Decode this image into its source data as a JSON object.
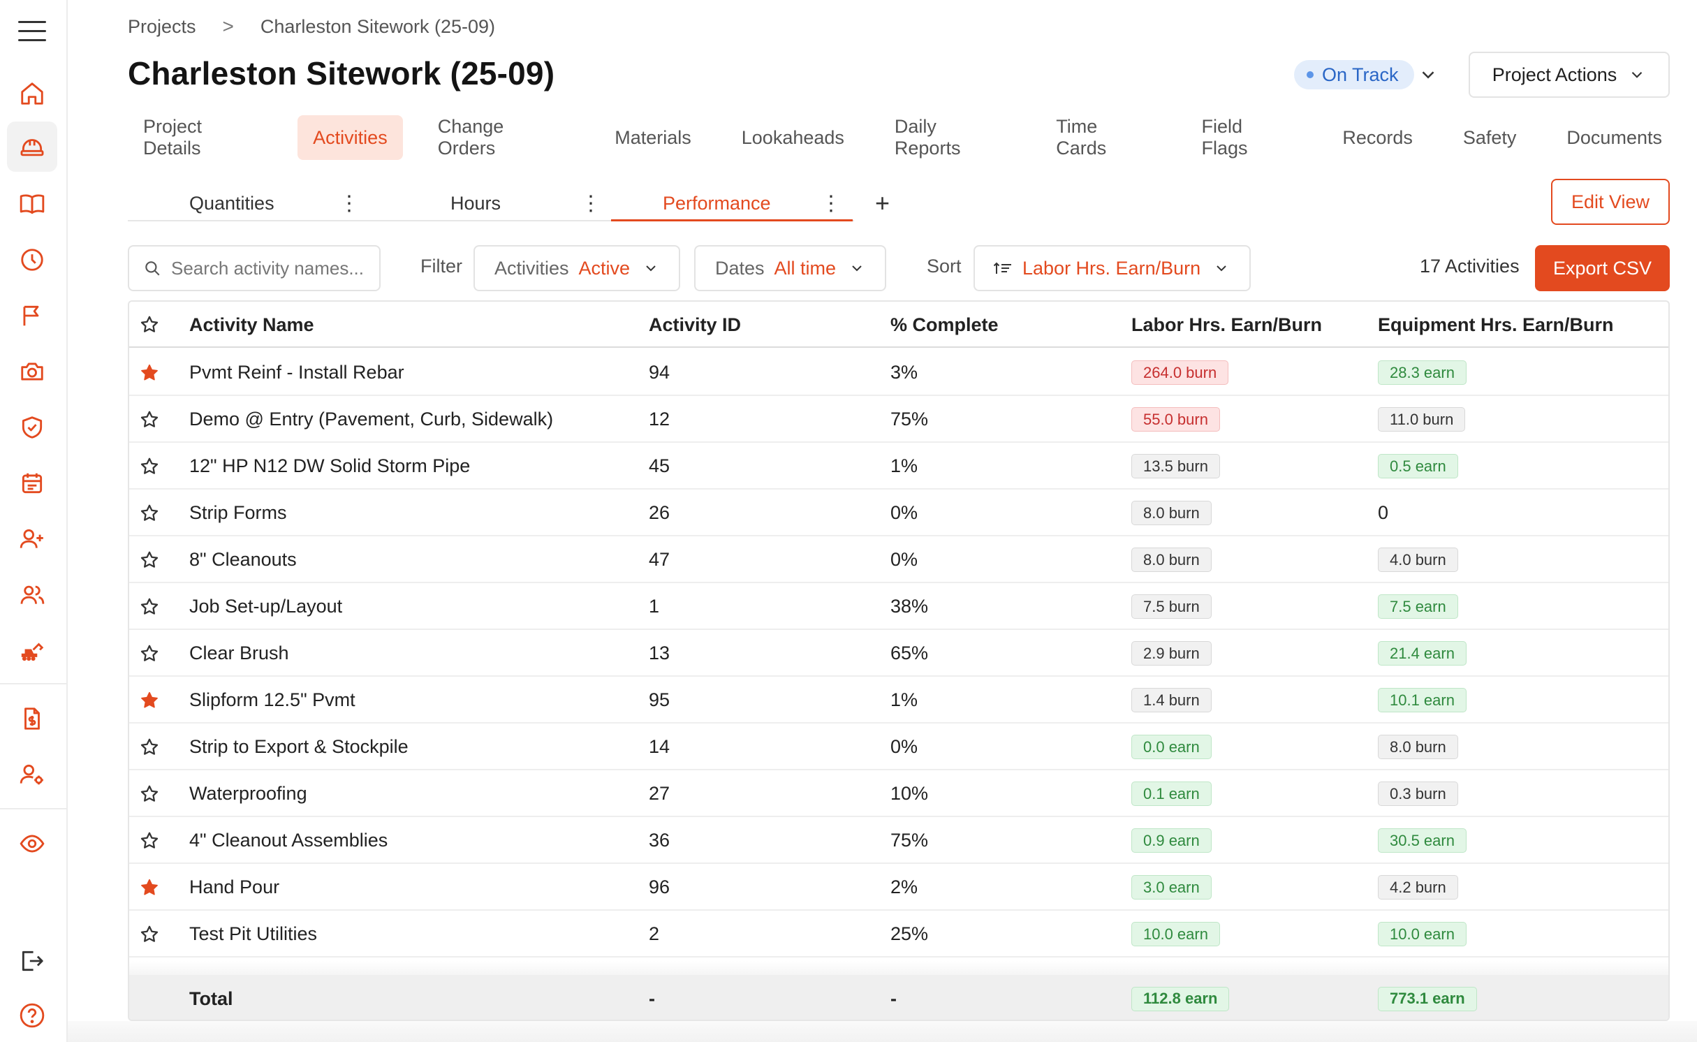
{
  "breadcrumb": {
    "parent": "Projects",
    "separator": ">",
    "current": "Charleston Sitework (25-09)"
  },
  "title": "Charleston Sitework (25-09)",
  "status": {
    "label": "On Track",
    "color": "#2a66c6"
  },
  "project_actions_label": "Project Actions",
  "tabs": [
    {
      "label": "Project Details",
      "active": false
    },
    {
      "label": "Activities",
      "active": true
    },
    {
      "label": "Change Orders",
      "active": false
    },
    {
      "label": "Materials",
      "active": false
    },
    {
      "label": "Lookaheads",
      "active": false
    },
    {
      "label": "Daily Reports",
      "active": false
    },
    {
      "label": "Time Cards",
      "active": false
    },
    {
      "label": "Field Flags",
      "active": false
    },
    {
      "label": "Records",
      "active": false
    },
    {
      "label": "Safety",
      "active": false
    },
    {
      "label": "Documents",
      "active": false
    }
  ],
  "views": [
    {
      "label": "Quantities",
      "active": false
    },
    {
      "label": "Hours",
      "active": false
    },
    {
      "label": "Performance",
      "active": true
    }
  ],
  "add_view_label": "+",
  "edit_view_label": "Edit View",
  "search": {
    "placeholder": "Search activity names...",
    "value": ""
  },
  "filter": {
    "label": "Filter",
    "activities": {
      "name": "Activities",
      "value": "Active"
    },
    "dates": {
      "name": "Dates",
      "value": "All time"
    }
  },
  "sort": {
    "label": "Sort",
    "value": "Labor Hrs. Earn/Burn"
  },
  "activity_count": "17 Activities",
  "export_label": "Export CSV",
  "accent_color": "#e34a1f",
  "sidebar_icons": [
    "menu-icon",
    "home-icon",
    "hardhat-icon",
    "book-icon",
    "clock-icon",
    "flag-icon",
    "camera-icon",
    "shield-icon",
    "calendar-icon",
    "user-plus-icon",
    "users-icon",
    "excavator-icon",
    "document-dollar-icon",
    "user-gear-icon",
    "eye-icon",
    "logout-icon",
    "help-icon"
  ],
  "table": {
    "columns": [
      "Activity Name",
      "Activity ID",
      "% Complete",
      "Labor Hrs. Earn/Burn",
      "Equipment Hrs. Earn/Burn"
    ],
    "rows": [
      {
        "starred": true,
        "name": "Pvmt Reinf - Install Rebar",
        "id": "94",
        "complete": "3%",
        "labor": "264.0 burn",
        "labor_type": "red",
        "equip": "28.3 earn",
        "equip_type": "green"
      },
      {
        "starred": false,
        "name": "Demo @ Entry (Pavement, Curb, Sidewalk)",
        "id": "12",
        "complete": "75%",
        "labor": "55.0 burn",
        "labor_type": "red",
        "equip": "11.0 burn",
        "equip_type": "gray"
      },
      {
        "starred": false,
        "name": "12\" HP N12 DW Solid Storm Pipe",
        "id": "45",
        "complete": "1%",
        "labor": "13.5 burn",
        "labor_type": "gray",
        "equip": "0.5 earn",
        "equip_type": "green"
      },
      {
        "starred": false,
        "name": "Strip Forms",
        "id": "26",
        "complete": "0%",
        "labor": "8.0 burn",
        "labor_type": "gray",
        "equip": "0",
        "equip_type": "plain"
      },
      {
        "starred": false,
        "name": "8\" Cleanouts",
        "id": "47",
        "complete": "0%",
        "labor": "8.0 burn",
        "labor_type": "gray",
        "equip": "4.0 burn",
        "equip_type": "gray"
      },
      {
        "starred": false,
        "name": "Job Set-up/Layout",
        "id": "1",
        "complete": "38%",
        "labor": "7.5 burn",
        "labor_type": "gray",
        "equip": "7.5 earn",
        "equip_type": "green"
      },
      {
        "starred": false,
        "name": "Clear Brush",
        "id": "13",
        "complete": "65%",
        "labor": "2.9 burn",
        "labor_type": "gray",
        "equip": "21.4 earn",
        "equip_type": "green"
      },
      {
        "starred": true,
        "name": "Slipform 12.5\" Pvmt",
        "id": "95",
        "complete": "1%",
        "labor": "1.4 burn",
        "labor_type": "gray",
        "equip": "10.1 earn",
        "equip_type": "green"
      },
      {
        "starred": false,
        "name": "Strip to Export & Stockpile",
        "id": "14",
        "complete": "0%",
        "labor": "0.0 earn",
        "labor_type": "green",
        "equip": "8.0 burn",
        "equip_type": "gray"
      },
      {
        "starred": false,
        "name": "Waterproofing",
        "id": "27",
        "complete": "10%",
        "labor": "0.1 earn",
        "labor_type": "green",
        "equip": "0.3 burn",
        "equip_type": "gray"
      },
      {
        "starred": false,
        "name": "4\" Cleanout Assemblies",
        "id": "36",
        "complete": "75%",
        "labor": "0.9 earn",
        "labor_type": "green",
        "equip": "30.5 earn",
        "equip_type": "green"
      },
      {
        "starred": true,
        "name": "Hand Pour",
        "id": "96",
        "complete": "2%",
        "labor": "3.0 earn",
        "labor_type": "green",
        "equip": "4.2 burn",
        "equip_type": "gray"
      },
      {
        "starred": false,
        "name": "Test Pit Utilities",
        "id": "2",
        "complete": "25%",
        "labor": "10.0 earn",
        "labor_type": "green",
        "equip": "10.0 earn",
        "equip_type": "green"
      }
    ],
    "total": {
      "label": "Total",
      "id": "-",
      "complete": "-",
      "labor": "112.8 earn",
      "equip": "773.1 earn"
    }
  }
}
